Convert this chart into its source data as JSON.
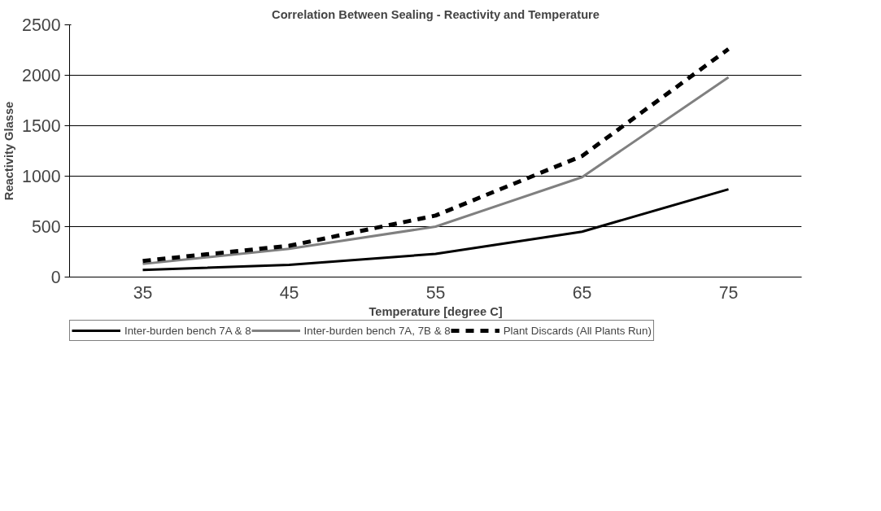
{
  "chart_data": {
    "type": "line",
    "title": "Correlation Between Sealing - Reactivity and Temperature",
    "xlabel": "Temperature [degree C]",
    "ylabel": "Reactivity Glasse",
    "categories": [
      "35",
      "45",
      "55",
      "65",
      "75"
    ],
    "series": [
      {
        "name": "Inter-burden bench 7A & 8",
        "color": "#000000",
        "values": [
          70,
          120,
          230,
          450,
          870
        ],
        "line_style": "solid"
      },
      {
        "name": "Inter-burden bench 7A, 7B & 8",
        "color": "#808080",
        "values": [
          130,
          280,
          500,
          990,
          1980
        ],
        "line_style": "solid"
      },
      {
        "name": "Plant Discards (All Plants Run)",
        "color": "#000000",
        "values": [
          160,
          310,
          610,
          1200,
          2260
        ],
        "line_style": "dashed"
      }
    ],
    "ylim": [
      0,
      2500
    ],
    "yticks": [
      0,
      500,
      1000,
      1500,
      2000,
      2500
    ],
    "grid": "y",
    "legend": "bottom",
    "marker": "none"
  }
}
